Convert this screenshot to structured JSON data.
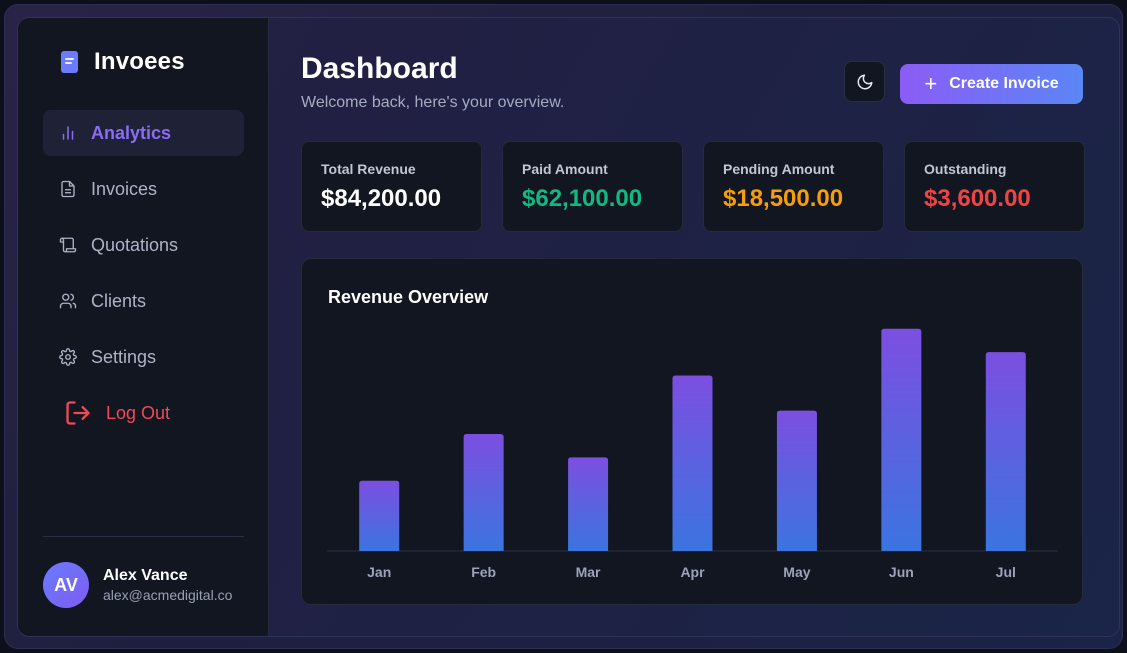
{
  "brand": {
    "name": "Invoees"
  },
  "sidebar": {
    "items": [
      {
        "label": "Analytics",
        "icon": "bar-chart-icon",
        "active": true
      },
      {
        "label": "Invoices",
        "icon": "file-text-icon",
        "active": false
      },
      {
        "label": "Quotations",
        "icon": "scroll-icon",
        "active": false
      },
      {
        "label": "Clients",
        "icon": "users-icon",
        "active": false
      },
      {
        "label": "Settings",
        "icon": "gear-icon",
        "active": false
      }
    ],
    "logout_label": "Log Out"
  },
  "user": {
    "initials": "AV",
    "name": "Alex Vance",
    "email": "alex@acmedigital.co"
  },
  "header": {
    "title": "Dashboard",
    "subtitle": "Welcome back, here's your overview.",
    "create_label": "Create Invoice"
  },
  "stats": [
    {
      "label": "Total Revenue",
      "value": "$84,200.00",
      "color": "#ffffff"
    },
    {
      "label": "Paid Amount",
      "value": "$62,100.00",
      "color": "#10b981"
    },
    {
      "label": "Pending Amount",
      "value": "$18,500.00",
      "color": "#f59e0b"
    },
    {
      "label": "Outstanding",
      "value": "$3,600.00",
      "color": "#ef4444"
    }
  ],
  "colors": {
    "accent": "#8b5cf6",
    "accent_blue": "#5b86f5",
    "bar_top": "#7c4fe0",
    "bar_bottom": "#3b74e0"
  },
  "chart_data": {
    "type": "bar",
    "title": "Revenue Overview",
    "categories": [
      "Jan",
      "Feb",
      "Mar",
      "Apr",
      "May",
      "Jun",
      "Jul"
    ],
    "values": [
      30,
      50,
      40,
      75,
      60,
      95,
      85
    ],
    "ylim": [
      0,
      100
    ],
    "grid": false,
    "legend": "none"
  }
}
